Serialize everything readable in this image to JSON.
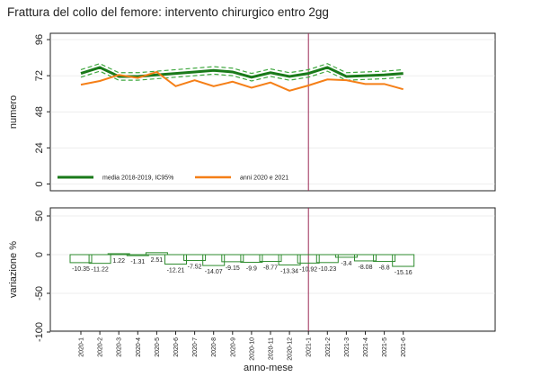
{
  "title": "Frattura del collo del femore: intervento chirurgico entro 2gg",
  "colors": {
    "media": "#1a7a1a",
    "ci": "#3fa83f",
    "anni": "#f57f17",
    "vline": "#9c2a55",
    "bar": "#2e8b2e",
    "grid": "#dddddd"
  },
  "chart_data": [
    {
      "type": "line",
      "categories": [
        "2020-1",
        "2020-2",
        "2020-3",
        "2020-4",
        "2020-5",
        "2020-6",
        "2020-7",
        "2020-8",
        "2020-9",
        "2020-10",
        "2020-11",
        "2020-12",
        "2021-1",
        "2021-2",
        "2021-3",
        "2021-4",
        "2021-5",
        "2021-6"
      ],
      "series": [
        {
          "name": "media 2018-2019, IC95%",
          "values": [
            73.5,
            77.5,
            71.5,
            71.5,
            72.5,
            73.5,
            74.5,
            75.5,
            74.5,
            71,
            74,
            71.5,
            73.5,
            77.5,
            71.5,
            72,
            72.5,
            73.5
          ]
        },
        {
          "name": "IC95% superiore",
          "values": [
            76,
            80,
            74,
            74,
            75,
            76,
            77,
            78,
            77,
            73.5,
            76.5,
            74,
            76,
            80,
            74,
            74.5,
            75,
            76
          ]
        },
        {
          "name": "IC95% inferiore",
          "values": [
            71,
            75,
            69,
            69,
            70,
            71,
            72,
            73,
            72,
            68.5,
            71.5,
            69,
            71,
            75,
            69,
            69.5,
            70,
            71
          ]
        },
        {
          "name": "anni 2020 e 2021",
          "values": [
            66,
            68.5,
            72.5,
            70.5,
            74.5,
            65,
            69,
            65,
            68,
            64,
            67.5,
            62,
            65.5,
            69.5,
            69,
            66.5,
            66.5,
            63
          ]
        }
      ],
      "ylabel": "numero",
      "yticks": [
        "96",
        "72",
        "48",
        "24",
        "0"
      ],
      "ylim": [
        0,
        96
      ],
      "vline_at": "2021-1",
      "legend": [
        {
          "label": "media 2018-2019, IC95%"
        },
        {
          "label": "anni 2020 e 2021"
        }
      ]
    },
    {
      "type": "bar",
      "categories": [
        "2020-1",
        "2020-2",
        "2020-3",
        "2020-4",
        "2020-5",
        "2020-6",
        "2020-7",
        "2020-8",
        "2020-9",
        "2020-10",
        "2020-11",
        "2020-12",
        "2021-1",
        "2021-2",
        "2021-3",
        "2021-4",
        "2021-5",
        "2021-6"
      ],
      "values": [
        -10.35,
        -11.22,
        1.22,
        -1.31,
        2.51,
        -12.21,
        -7.52,
        -14.07,
        -9.15,
        -9.9,
        -8.77,
        -13.34,
        -10.92,
        -10.23,
        -3.4,
        -8.08,
        -8.8,
        -15.16
      ],
      "labels": [
        "-10.35",
        "-11.22",
        "1.22",
        "-1.31",
        "2.51",
        "-12.21",
        "-7.52",
        "-14.07",
        "-9.15",
        "-9.9",
        "-8.77",
        "-13.34",
        "-10.92",
        "-10.23",
        "-3.4",
        "-8.08",
        "-8.8",
        "-15.16"
      ],
      "ylabel": "variazione %",
      "xlabel": "anno-mese",
      "yticks": [
        "50",
        "0",
        "-50",
        "-100"
      ],
      "ylim": [
        -100,
        50
      ],
      "vline_at": "2021-1"
    }
  ]
}
